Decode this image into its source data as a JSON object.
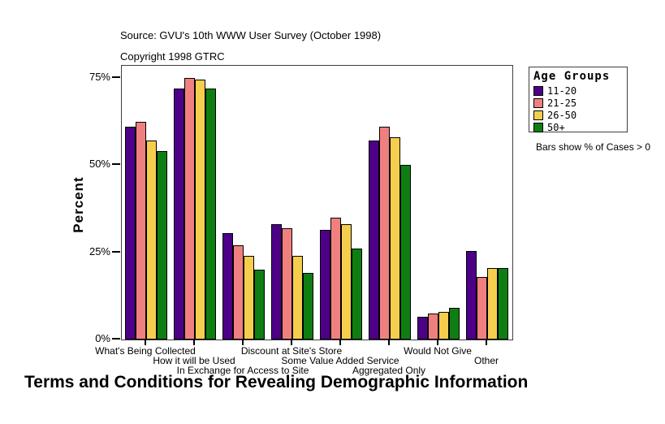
{
  "header": {
    "source": "Source: GVU's 10th WWW User Survey (October 1998)",
    "copyright": "Copyright 1998 GTRC"
  },
  "note": "Bars show % of Cases > 0",
  "legend": {
    "title": "Age Groups",
    "items": [
      {
        "label": "11-20",
        "color": "#4D0087"
      },
      {
        "label": "21-25",
        "color": "#F08080"
      },
      {
        "label": "26-50",
        "color": "#F5CE4D"
      },
      {
        "label": "50+",
        "color": "#0E7E12"
      }
    ]
  },
  "chart_data": {
    "type": "bar",
    "title": "Terms and Conditions for Revealing Demographic Information",
    "ylabel": "Percent",
    "ylim": [
      0,
      78.5
    ],
    "yticks": [
      {
        "pct": 75,
        "label": "75%"
      },
      {
        "pct": 50,
        "label": "50%"
      },
      {
        "pct": 25,
        "label": "25%"
      },
      {
        "pct": 0,
        "label": "0%"
      }
    ],
    "grid": false,
    "legend_position": "right",
    "categories": [
      {
        "label": "What's Being Collected",
        "stagger_row": 1
      },
      {
        "label": "How it will be Used",
        "stagger_row": 2
      },
      {
        "label": "In Exchange for Access to Site",
        "stagger_row": 3
      },
      {
        "label": "Discount at Site's Store",
        "stagger_row": 1
      },
      {
        "label": "Some Value Added Service",
        "stagger_row": 2
      },
      {
        "label": "Aggregated Only",
        "stagger_row": 3
      },
      {
        "label": "Would Not Give",
        "stagger_row": 1
      },
      {
        "label": "Other",
        "stagger_row": 2
      }
    ],
    "series": [
      {
        "name": "11-20",
        "color": "#4D0087",
        "values": [
          61,
          72,
          30.5,
          33,
          31.5,
          57,
          6.5,
          25.5
        ]
      },
      {
        "name": "21-25",
        "color": "#F08080",
        "values": [
          62.5,
          75,
          27,
          32,
          35,
          61,
          7.5,
          18
        ]
      },
      {
        "name": "26-50",
        "color": "#F5CE4D",
        "values": [
          57,
          74.5,
          24,
          24,
          33,
          58,
          8,
          20.5
        ]
      },
      {
        "name": "50+",
        "color": "#0E7E12",
        "values": [
          54,
          72,
          20,
          19,
          26,
          50,
          9,
          20.5
        ]
      }
    ]
  }
}
